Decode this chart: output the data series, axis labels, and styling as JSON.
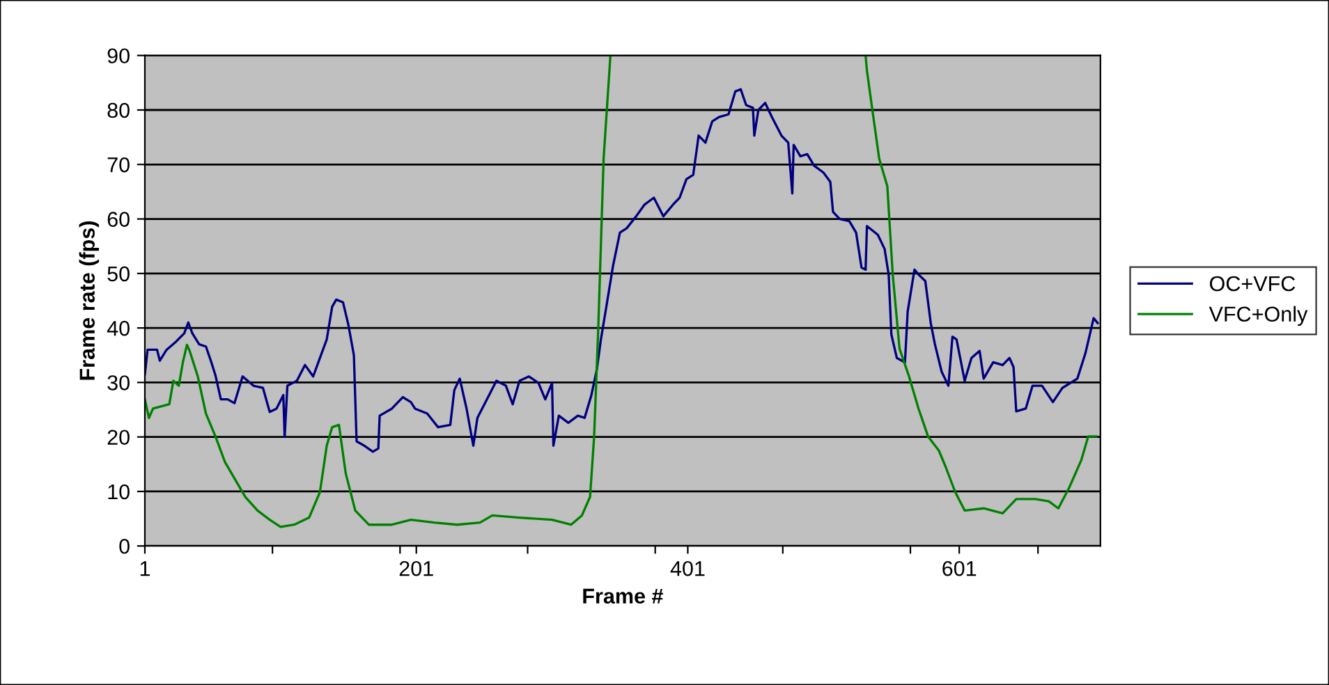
{
  "chart_data": {
    "type": "line",
    "xlabel": "Frame #",
    "ylabel": "Frame rate (fps)",
    "xlim": [
      1,
      705
    ],
    "ylim": [
      0,
      90
    ],
    "yticks": [
      0,
      10,
      20,
      30,
      40,
      50,
      60,
      70,
      80,
      90
    ],
    "xticks": [
      1,
      {
        "value": 95,
        "label": null
      },
      {
        "value": 189,
        "label": null
      },
      201,
      {
        "value": 283,
        "label": null
      },
      {
        "value": 377,
        "label": null
      },
      401,
      {
        "value": 471,
        "label": null
      },
      {
        "value": 565,
        "label": null
      },
      601,
      {
        "value": 659,
        "label": null
      }
    ],
    "grid": "y",
    "legend": "right",
    "line_style": "solid",
    "marker": "none",
    "series": [
      {
        "name": "OC+VFC",
        "color": "#000080",
        "x": [
          1,
          3,
          10,
          12,
          17,
          24,
          30,
          33,
          36,
          41,
          46,
          50,
          53,
          57,
          62,
          67,
          73,
          81,
          88,
          93,
          98,
          103,
          104,
          106,
          113,
          119,
          125,
          130,
          135,
          139,
          142,
          147,
          151,
          155,
          157,
          162,
          169,
          173,
          174,
          183,
          191,
          197,
          200,
          209,
          217,
          226,
          229,
          233,
          238,
          243,
          246,
          253,
          260,
          267,
          272,
          277,
          284,
          291,
          296,
          301,
          302,
          306,
          313,
          320,
          325,
          330,
          334,
          337,
          341,
          346,
          351,
          356,
          363,
          369,
          376,
          383,
          390,
          395,
          400,
          405,
          409,
          414,
          419,
          424,
          431,
          436,
          440,
          444,
          449,
          450,
          453,
          458,
          463,
          470,
          475,
          478,
          479,
          484,
          489,
          494,
          501,
          506,
          508,
          513,
          520,
          525,
          529,
          532,
          533,
          541,
          546,
          549,
          551,
          555,
          561,
          563,
          568,
          571,
          576,
          580,
          583,
          588,
          593,
          596,
          599,
          605,
          610,
          616,
          619,
          626,
          633,
          638,
          641,
          643,
          650,
          655,
          662,
          670,
          677,
          688,
          694,
          700,
          703
        ],
        "values": [
          31.5,
          36,
          36,
          34,
          36,
          37.5,
          39,
          41,
          39,
          37,
          36.6,
          33.7,
          31.3,
          26.9,
          26.9,
          26.2,
          31.1,
          29.4,
          29,
          24.6,
          25.2,
          27.7,
          20,
          29.4,
          30.3,
          33.2,
          31.1,
          34.5,
          37.9,
          43.9,
          45.2,
          44.7,
          40.5,
          35,
          19.2,
          18.5,
          17.3,
          17.9,
          23.9,
          25.2,
          27.3,
          26.4,
          25.2,
          24.3,
          21.8,
          22.2,
          28.6,
          30.7,
          25.2,
          18.4,
          23.5,
          26.9,
          30.3,
          29.4,
          26,
          30.3,
          31.1,
          29.9,
          26.9,
          29.9,
          18.4,
          23.9,
          22.6,
          23.9,
          23.5,
          27.7,
          32.4,
          37.9,
          43.9,
          51.5,
          57.5,
          58.3,
          60.5,
          62.6,
          63.9,
          60.5,
          62.6,
          63.9,
          67.3,
          68.1,
          75.3,
          74,
          77.9,
          78.7,
          79.2,
          83.4,
          83.8,
          80.9,
          80.4,
          75.3,
          80,
          81.3,
          78.7,
          75.3,
          74,
          64.7,
          73.6,
          71.5,
          71.9,
          69.8,
          68.5,
          66.8,
          61.3,
          60,
          59.6,
          57.5,
          51.1,
          50.7,
          58.7,
          57.1,
          54.5,
          49.8,
          38.8,
          34.5,
          33.7,
          43,
          50.7,
          49.8,
          48.6,
          40.9,
          37.1,
          32,
          29.4,
          38.4,
          37.9,
          30.3,
          34.5,
          35.8,
          30.7,
          33.7,
          33.2,
          34.5,
          32.8,
          24.7,
          25.2,
          29.4,
          29.4,
          26.4,
          29,
          30.7,
          35.4,
          41.8,
          40.9
        ]
      },
      {
        "name": "VFC+Only",
        "color": "#008000",
        "x": [
          1,
          4,
          7,
          19,
          22,
          26,
          29,
          32,
          34,
          40,
          46,
          53,
          60,
          67,
          75,
          84,
          93,
          101,
          111,
          122,
          130,
          135,
          139,
          144,
          149,
          156,
          166,
          183,
          197,
          214,
          231,
          248,
          257,
          277,
          301,
          315,
          323,
          329,
          332,
          335,
          339,
          344,
          400,
          532,
          533,
          537,
          542,
          548,
          552,
          557,
          564,
          571,
          578,
          586,
          591,
          598,
          605,
          619,
          633,
          643,
          657,
          667,
          674,
          682,
          691,
          696,
          702
        ],
        "values": [
          26.9,
          23.5,
          25.2,
          26,
          30.3,
          29.4,
          33.7,
          36.9,
          35.8,
          31.1,
          24.3,
          20.1,
          15.4,
          12.4,
          9,
          6.5,
          4.8,
          3.5,
          3.9,
          5.2,
          9.9,
          18.4,
          21.8,
          22.2,
          13.3,
          6.5,
          3.9,
          3.9,
          4.8,
          4.3,
          3.9,
          4.3,
          5.6,
          5.2,
          4.8,
          3.9,
          5.6,
          9,
          20.1,
          39.6,
          71.1,
          90,
          null,
          90,
          87.2,
          80,
          71.1,
          66,
          49.8,
          36.2,
          31.1,
          25.2,
          20.1,
          17.5,
          14.5,
          9.9,
          6.5,
          6.9,
          6,
          8.6,
          8.6,
          8.2,
          6.9,
          10.7,
          15.8,
          20.1,
          20.1
        ]
      }
    ]
  }
}
